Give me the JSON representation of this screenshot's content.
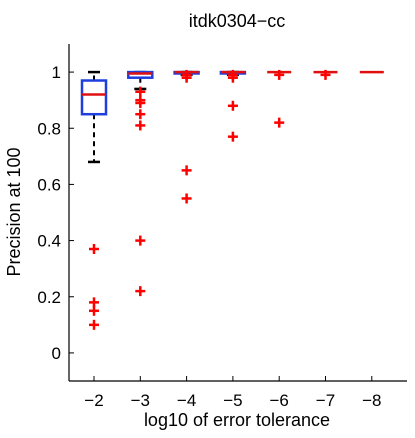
{
  "chart_data": {
    "type": "boxplot",
    "title": "itdk0304−cc",
    "xlabel": "log10 of error tolerance",
    "ylabel": "Precision at 100",
    "categories": [
      "−2",
      "−3",
      "−4",
      "−5",
      "−6",
      "−7",
      "−8"
    ],
    "yticks": [
      "0",
      "0.2",
      "0.4",
      "0.6",
      "0.8",
      "1"
    ],
    "ylim": [
      -0.1,
      1.1
    ],
    "grid": false,
    "colors": {
      "box": "#1f3fdc",
      "median": "#e01010",
      "whisker": "#000000",
      "outlier": "#ff0000"
    },
    "boxes": [
      {
        "q1": 0.85,
        "median": 0.92,
        "q3": 0.97,
        "whisker_low": 0.68,
        "whisker_high": 1.0,
        "outliers": [
          0.37,
          0.18,
          0.15,
          0.1
        ]
      },
      {
        "q1": 0.98,
        "median": 0.995,
        "q3": 1.0,
        "whisker_low": 0.94,
        "whisker_high": 1.0,
        "outliers": [
          0.93,
          0.9,
          0.89,
          0.85,
          0.81,
          0.4,
          0.22
        ]
      },
      {
        "q1": 0.995,
        "median": 1.0,
        "q3": 1.0,
        "whisker_low": 0.99,
        "whisker_high": 1.0,
        "outliers": [
          0.99,
          0.98,
          0.65,
          0.55
        ]
      },
      {
        "q1": 0.995,
        "median": 1.0,
        "q3": 1.0,
        "whisker_low": 0.99,
        "whisker_high": 1.0,
        "outliers": [
          0.99,
          0.98,
          0.88,
          0.77
        ]
      },
      {
        "q1": 1.0,
        "median": 1.0,
        "q3": 1.0,
        "whisker_low": 1.0,
        "whisker_high": 1.0,
        "outliers": [
          0.99,
          0.82
        ]
      },
      {
        "q1": 1.0,
        "median": 1.0,
        "q3": 1.0,
        "whisker_low": 1.0,
        "whisker_high": 1.0,
        "outliers": [
          0.99
        ]
      },
      {
        "q1": 1.0,
        "median": 1.0,
        "q3": 1.0,
        "whisker_low": 1.0,
        "whisker_high": 1.0,
        "outliers": []
      }
    ]
  }
}
